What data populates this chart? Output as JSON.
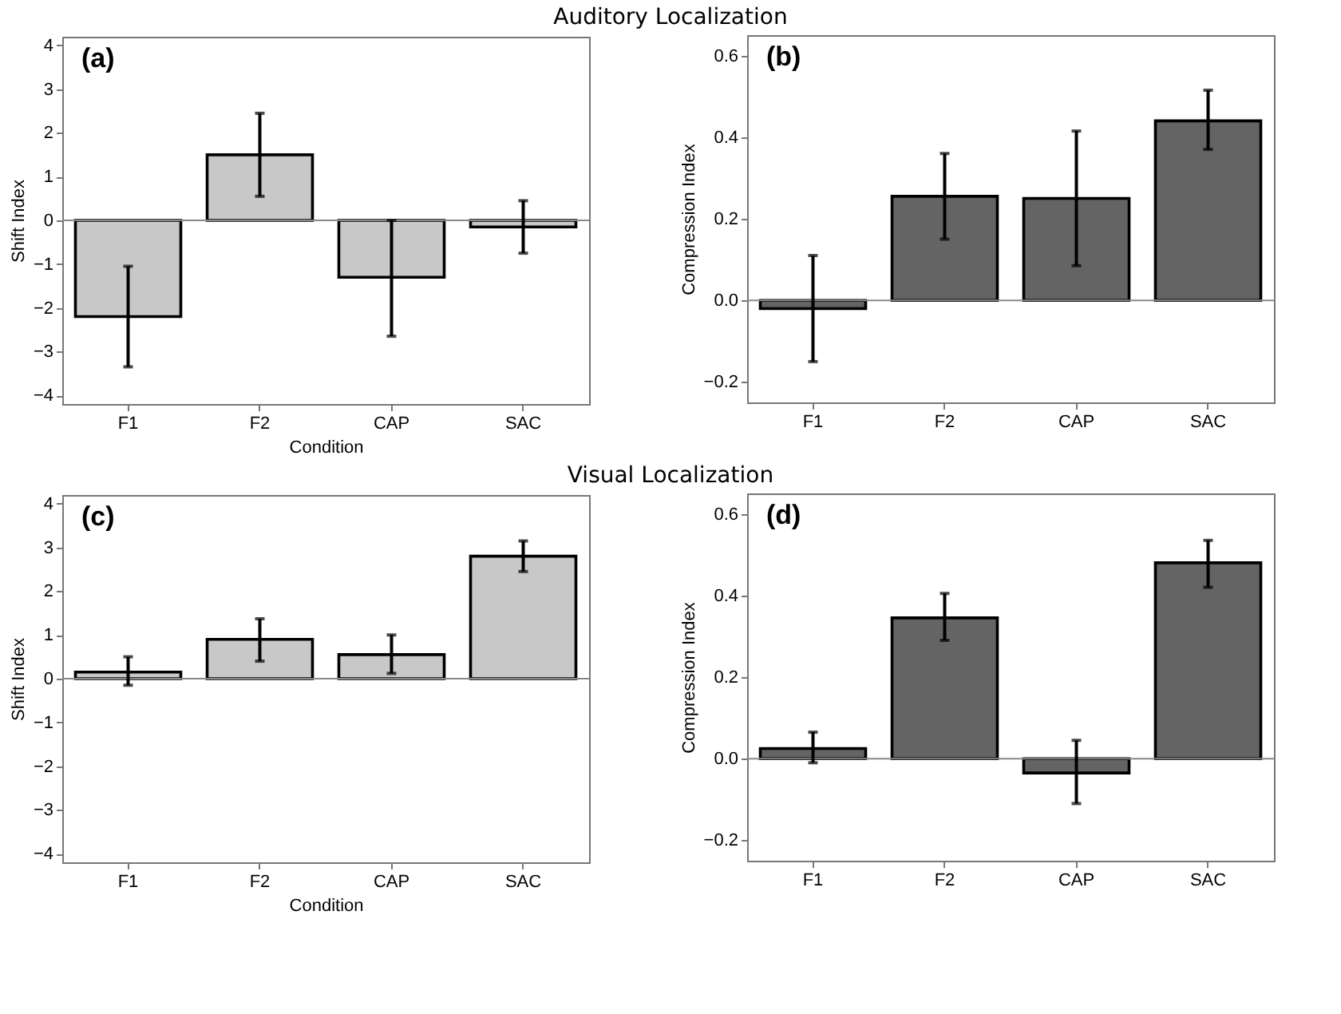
{
  "chart_data": [
    {
      "type": "bar",
      "title": "Auditory Localization",
      "annotations": [
        "(a)"
      ],
      "xlabel": "Condition",
      "ylabel": "Shift Index",
      "categories": [
        "F1",
        "F2",
        "CAP",
        "SAC"
      ],
      "series": [
        {
          "color": "#c8c8c8",
          "values": [
            -2.2,
            1.5,
            -1.3,
            -0.15
          ],
          "errors": [
            [
              -3.35,
              -1.05
            ],
            [
              0.55,
              2.45
            ],
            [
              -2.65,
              0.0
            ],
            [
              -0.75,
              0.45
            ]
          ]
        }
      ],
      "ylim": [
        -4.2,
        4.2
      ],
      "yticks": [
        -4,
        -3,
        -2,
        -1,
        0,
        1,
        2,
        3,
        4
      ],
      "ref_lines": [
        {
          "axis": "y",
          "value": 0,
          "color": "#888888"
        }
      ],
      "grid": false
    },
    {
      "type": "bar",
      "annotations": [
        "(b)"
      ],
      "ylabel": "Compression Index",
      "categories": [
        "F1",
        "F2",
        "CAP",
        "SAC"
      ],
      "series": [
        {
          "color": "#646464",
          "values": [
            -0.02,
            0.255,
            0.25,
            0.44
          ],
          "errors": [
            [
              -0.15,
              0.11
            ],
            [
              0.15,
              0.36
            ],
            [
              0.085,
              0.415
            ],
            [
              0.37,
              0.515
            ]
          ]
        }
      ],
      "ylim": [
        -0.25,
        0.65
      ],
      "yticks": [
        -0.2,
        {
          "value": 0,
          "label": "0.0"
        },
        0.2,
        0.4,
        0.6
      ],
      "ref_lines": [
        {
          "axis": "y",
          "value": 0,
          "color": "#888888"
        }
      ],
      "grid": false
    },
    {
      "type": "bar",
      "title": "Visual Localization",
      "annotations": [
        "(c)"
      ],
      "xlabel": "Condition",
      "ylabel": "Shift Index",
      "categories": [
        "F1",
        "F2",
        "CAP",
        "SAC"
      ],
      "series": [
        {
          "color": "#c8c8c8",
          "values": [
            0.15,
            0.9,
            0.55,
            2.8
          ],
          "errors": [
            [
              -0.15,
              0.5
            ],
            [
              0.4,
              1.37
            ],
            [
              0.12,
              1.0
            ],
            [
              2.45,
              3.15
            ]
          ]
        }
      ],
      "ylim": [
        -4.2,
        4.2
      ],
      "yticks": [
        -4,
        -3,
        -2,
        -1,
        0,
        1,
        2,
        3,
        4
      ],
      "ref_lines": [
        {
          "axis": "y",
          "value": 0,
          "color": "#888888"
        }
      ],
      "grid": false
    },
    {
      "type": "bar",
      "annotations": [
        "(d)"
      ],
      "ylabel": "Compression Index",
      "categories": [
        "F1",
        "F2",
        "CAP",
        "SAC"
      ],
      "series": [
        {
          "color": "#646464",
          "values": [
            0.025,
            0.345,
            -0.035,
            0.48
          ],
          "errors": [
            [
              -0.01,
              0.065
            ],
            [
              0.29,
              0.405
            ],
            [
              -0.11,
              0.045
            ],
            [
              0.42,
              0.535
            ]
          ]
        }
      ],
      "ylim": [
        -0.25,
        0.65
      ],
      "yticks": [
        -0.2,
        {
          "value": 0,
          "label": "0.0"
        },
        0.2,
        0.4,
        0.6
      ],
      "ref_lines": [
        {
          "axis": "y",
          "value": 0,
          "color": "#888888"
        }
      ],
      "grid": false
    }
  ]
}
